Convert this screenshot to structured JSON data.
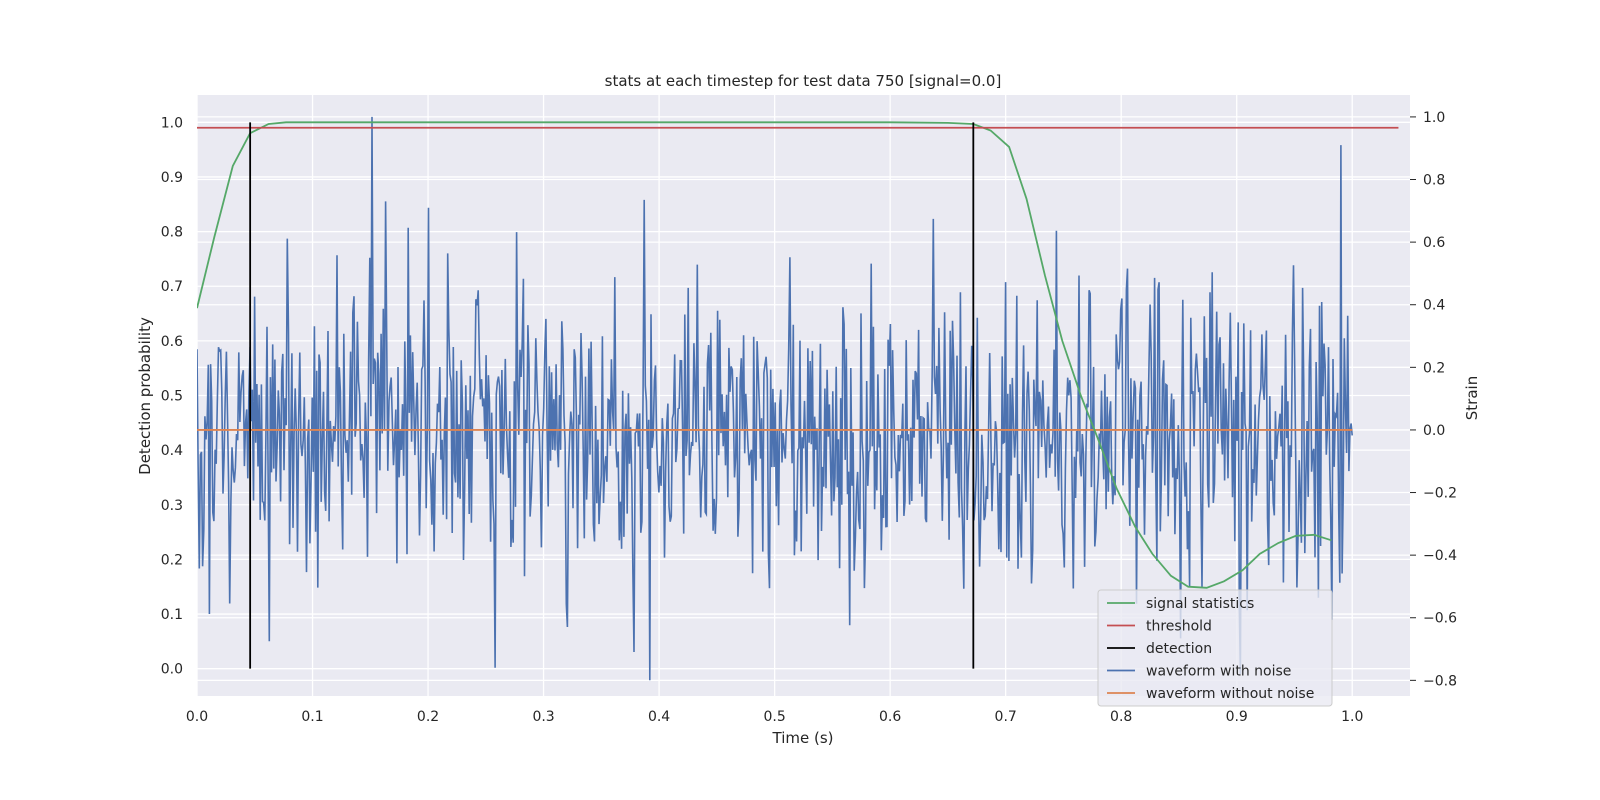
{
  "chart_data": {
    "type": "line",
    "title": "stats at each timestep for test data 750 [signal=0.0]",
    "xlabel": "Time (s)",
    "ylabel_left": "Detection probability",
    "ylabel_right": "Strain",
    "xlim": [
      0.0,
      1.05
    ],
    "ylim_left": [
      -0.05,
      1.05
    ],
    "ylim_right": [
      -0.85,
      1.07
    ],
    "x_ticks": [
      "0.0",
      "0.1",
      "0.2",
      "0.3",
      "0.4",
      "0.5",
      "0.6",
      "0.7",
      "0.8",
      "0.9",
      "1.0"
    ],
    "y_ticks_left": [
      "0.0",
      "0.1",
      "0.2",
      "0.3",
      "0.4",
      "0.5",
      "0.6",
      "0.7",
      "0.8",
      "0.9",
      "1.0"
    ],
    "y_ticks_right": [
      "−0.8",
      "−0.6",
      "−0.4",
      "−0.2",
      "0.0",
      "0.2",
      "0.4",
      "0.6",
      "0.8",
      "1.0"
    ],
    "grid": true,
    "legend_position": "lower-right",
    "legend": [
      "signal statistics",
      "threshold",
      "detection",
      "waveform with noise",
      "waveform without noise"
    ],
    "colors": {
      "signal_statistics": "#55a868",
      "threshold": "#c44e52",
      "detection": "#000000",
      "waveform_with_noise": "#4c72b0",
      "waveform_without_noise": "#dd8452",
      "axes_bg": "#eaeaf2",
      "grid": "#ffffff"
    },
    "signal_statistics": {
      "axis": "left",
      "x": [
        0.0,
        0.015,
        0.031,
        0.046,
        0.062,
        0.077,
        0.1,
        0.2,
        0.3,
        0.4,
        0.5,
        0.6,
        0.65,
        0.672,
        0.687,
        0.703,
        0.718,
        0.734,
        0.749,
        0.765,
        0.78,
        0.796,
        0.812,
        0.827,
        0.843,
        0.858,
        0.874,
        0.889,
        0.905,
        0.92,
        0.936,
        0.951,
        0.967,
        0.982
      ],
      "y": [
        0.66,
        0.79,
        0.92,
        0.98,
        0.997,
        1.0,
        1.0,
        1.0,
        1.0,
        1.0,
        1.0,
        1.0,
        0.999,
        0.997,
        0.985,
        0.955,
        0.86,
        0.72,
        0.6,
        0.5,
        0.42,
        0.33,
        0.26,
        0.21,
        0.17,
        0.15,
        0.148,
        0.16,
        0.18,
        0.21,
        0.23,
        0.243,
        0.245,
        0.235
      ]
    },
    "threshold": {
      "axis": "left",
      "value": 0.99,
      "x_range": [
        0.0,
        1.04
      ]
    },
    "detections": {
      "axis": "left",
      "x": [
        0.046,
        0.672
      ],
      "y_range": [
        0.0,
        1.0
      ]
    },
    "waveform_without_noise": {
      "axis": "right",
      "value": 0.0,
      "x_range": [
        0.0,
        1.0
      ]
    },
    "waveform_with_noise": {
      "axis": "right",
      "x_start": 0.0,
      "x_end": 1.0,
      "n_points": 1024,
      "y_min": -0.8,
      "y_max": 1.0,
      "std": 0.23,
      "peaks": [
        [
          0.152,
          1.0
        ],
        [
          0.392,
          -0.8
        ],
        [
          0.99,
          0.91
        ],
        [
          0.258,
          -0.76
        ],
        [
          0.15,
          0.55
        ],
        [
          0.163,
          0.73
        ],
        [
          0.2,
          0.71
        ]
      ]
    }
  }
}
